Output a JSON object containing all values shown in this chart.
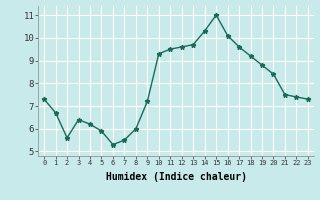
{
  "x": [
    0,
    1,
    2,
    3,
    4,
    5,
    6,
    7,
    8,
    9,
    10,
    11,
    12,
    13,
    14,
    15,
    16,
    17,
    18,
    19,
    20,
    21,
    22,
    23
  ],
  "y": [
    7.3,
    6.7,
    5.6,
    6.4,
    6.2,
    5.9,
    5.3,
    5.5,
    6.0,
    7.2,
    9.3,
    9.5,
    9.6,
    9.7,
    10.3,
    11.0,
    10.1,
    9.6,
    9.2,
    8.8,
    8.4,
    7.5,
    7.4,
    7.3
  ],
  "line_color": "#1a6b5a",
  "marker_color": "#1a6b5a",
  "bg_color": "#c8eaea",
  "grid_color": "#ffffff",
  "xlabel": "Humidex (Indice chaleur)",
  "xlabel_fontsize": 7,
  "yticks": [
    5,
    6,
    7,
    8,
    9,
    10,
    11
  ],
  "xtick_labels": [
    "0",
    "1",
    "2",
    "3",
    "4",
    "5",
    "6",
    "7",
    "8",
    "9",
    "10",
    "11",
    "12",
    "13",
    "14",
    "15",
    "16",
    "17",
    "18",
    "19",
    "20",
    "21",
    "22",
    "23"
  ],
  "xlim": [
    -0.5,
    23.5
  ],
  "ylim": [
    4.8,
    11.4
  ]
}
